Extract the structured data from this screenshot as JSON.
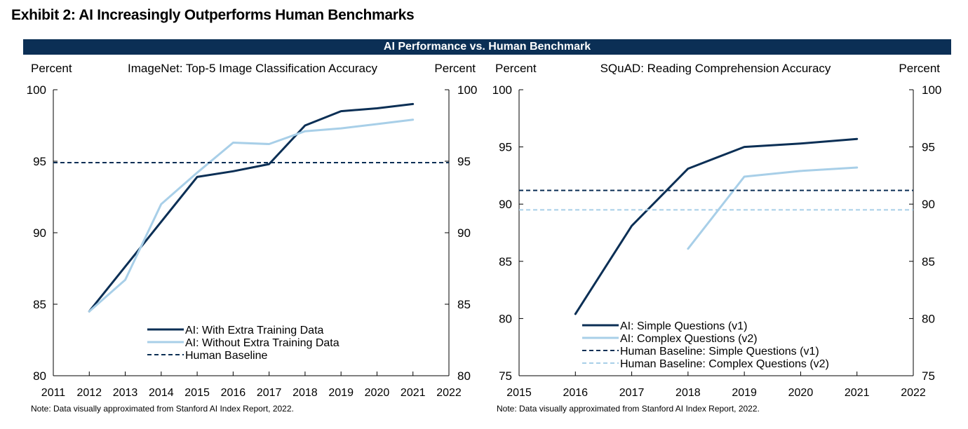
{
  "exhibit_title": "Exhibit 2: AI Increasingly Outperforms Human Benchmarks",
  "banner_title": "AI Performance vs. Human Benchmark",
  "chart_data": [
    {
      "type": "line",
      "title": "ImageNet: Top-5 Image Classification Accuracy",
      "ylabel_left": "Percent",
      "ylabel_right": "Percent",
      "xlim": [
        2011,
        2022
      ],
      "ylim": [
        80,
        100
      ],
      "x_ticks": [
        2011,
        2012,
        2013,
        2014,
        2015,
        2016,
        2017,
        2018,
        2019,
        2020,
        2021,
        2022
      ],
      "y_ticks": [
        80,
        85,
        90,
        95,
        100
      ],
      "grid": false,
      "legend_position": "bottom-center",
      "series": [
        {
          "name": "AI: With Extra Training Data",
          "style": "solid",
          "color": "#0b2f55",
          "x": [
            2012,
            2015,
            2016,
            2017,
            2018,
            2019,
            2020,
            2021
          ],
          "y": [
            84.5,
            93.9,
            94.3,
            94.8,
            97.5,
            98.5,
            98.7,
            99.0
          ]
        },
        {
          "name": "AI: Without Extra Training Data",
          "style": "solid",
          "color": "#a8cfe8",
          "x": [
            2012,
            2013,
            2014,
            2015,
            2016,
            2017,
            2018,
            2019,
            2020,
            2021
          ],
          "y": [
            84.5,
            86.7,
            92.0,
            94.2,
            96.3,
            96.2,
            97.1,
            97.3,
            97.6,
            97.9
          ]
        },
        {
          "name": "Human Baseline",
          "style": "dashed",
          "color": "#0b2f55",
          "x": [
            2011,
            2022
          ],
          "y": [
            94.9,
            94.9
          ]
        }
      ],
      "note": "Note: Data visually approximated from Stanford AI Index Report, 2022."
    },
    {
      "type": "line",
      "title": "SQuAD: Reading Comprehension Accuracy",
      "ylabel_left": "Percent",
      "ylabel_right": "Percent",
      "xlim": [
        2015,
        2022
      ],
      "ylim": [
        75,
        100
      ],
      "x_ticks": [
        2015,
        2016,
        2017,
        2018,
        2019,
        2020,
        2021,
        2022
      ],
      "y_ticks": [
        75,
        80,
        85,
        90,
        95,
        100
      ],
      "grid": false,
      "legend_position": "bottom-right",
      "series": [
        {
          "name": "AI: Simple Questions (v1)",
          "style": "solid",
          "color": "#0b2f55",
          "x": [
            2016,
            2017,
            2018,
            2019,
            2020,
            2021
          ],
          "y": [
            80.4,
            88.1,
            93.1,
            95.0,
            95.3,
            95.7
          ]
        },
        {
          "name": "AI: Complex Questions (v2)",
          "style": "solid",
          "color": "#a8cfe8",
          "x": [
            2018,
            2019,
            2020,
            2021
          ],
          "y": [
            86.1,
            92.4,
            92.9,
            93.2
          ]
        },
        {
          "name": "Human Baseline: Simple Questions (v1)",
          "style": "dashed",
          "color": "#0b2f55",
          "x": [
            2015,
            2022
          ],
          "y": [
            91.2,
            91.2
          ]
        },
        {
          "name": "Human Baseline: Complex Questions (v2)",
          "style": "dashed",
          "color": "#a8cfe8",
          "x": [
            2015,
            2022
          ],
          "y": [
            89.5,
            89.5
          ]
        }
      ],
      "note": "Note: Data visually approximated from Stanford AI Index Report, 2022."
    }
  ]
}
